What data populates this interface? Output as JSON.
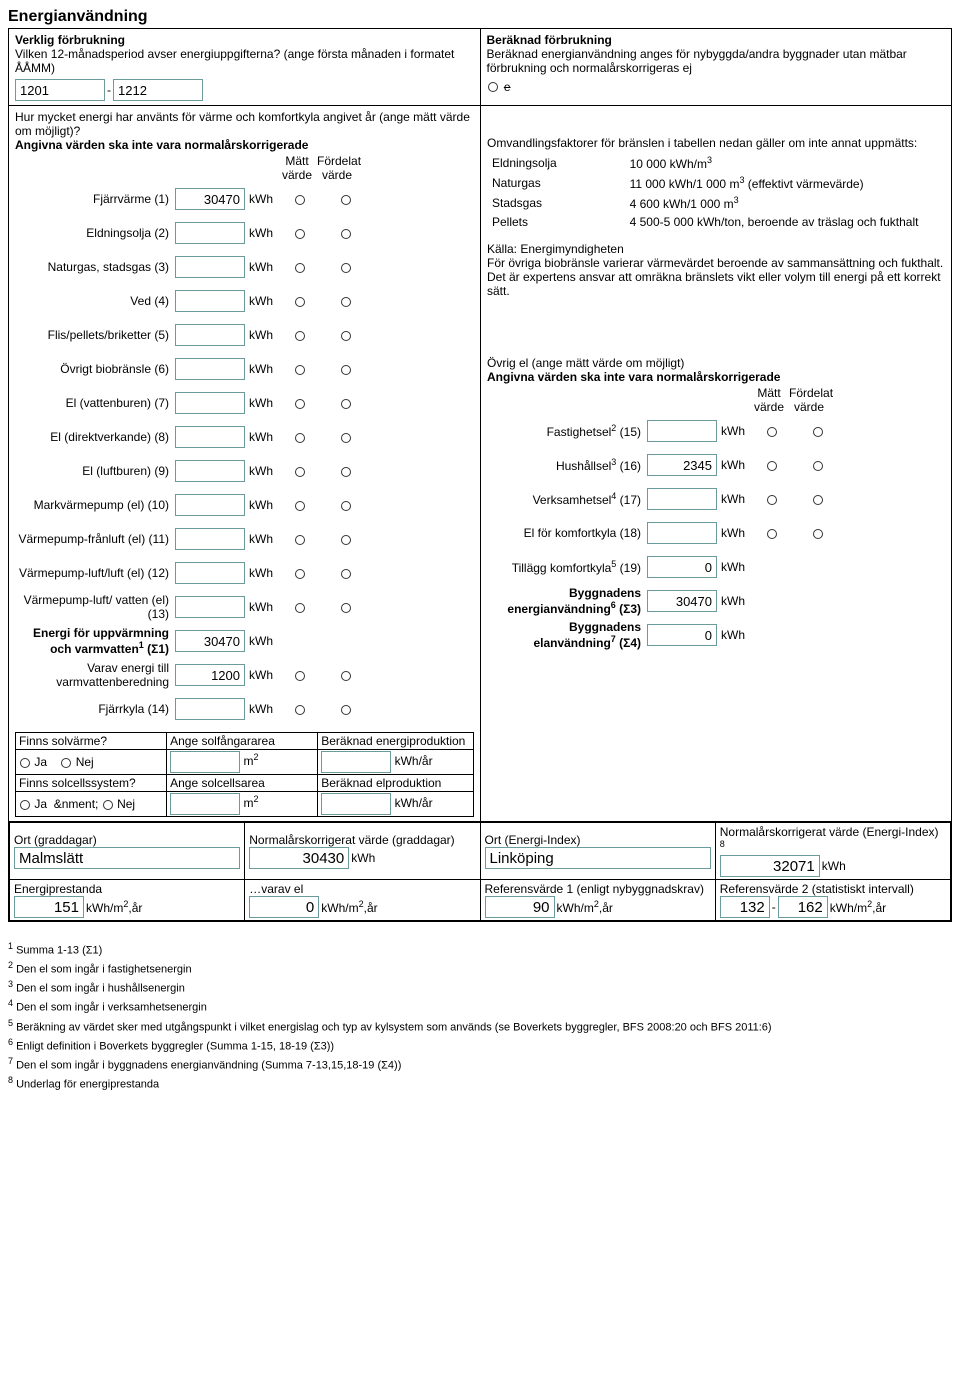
{
  "title": "Energianvändning",
  "left": {
    "heading": "Verklig förbrukning",
    "period_q": "Vilken 12-månadsperiod avser energiuppgifterna? (ange första månaden i formatet ÅÅMM)",
    "period_from": "1201",
    "period_sep": "-",
    "period_to": "1212",
    "energy_q1": "Hur mycket energi har använts för värme och komfortkyla angivet år (ange mätt värde om möjligt)?",
    "energy_q2": "Angivna värden ska inte vara normalårskorrigerade",
    "col_m": "Mätt värde",
    "col_f": "Fördelat värde",
    "rows": [
      {
        "label": "Fjärrvärme (1)",
        "val": "30470",
        "unit": "kWh"
      },
      {
        "label": "Eldningsolja (2)",
        "val": "",
        "unit": "kWh"
      },
      {
        "label": "Naturgas, stadsgas (3)",
        "val": "",
        "unit": "kWh"
      },
      {
        "label": "Ved (4)",
        "val": "",
        "unit": "kWh"
      },
      {
        "label": "Flis/pellets/briketter (5)",
        "val": "",
        "unit": "kWh"
      },
      {
        "label": "Övrigt biobränsle (6)",
        "val": "",
        "unit": "kWh"
      },
      {
        "label": "El (vattenburen) (7)",
        "val": "",
        "unit": "kWh"
      },
      {
        "label": "El (direktverkande) (8)",
        "val": "",
        "unit": "kWh"
      },
      {
        "label": "El (luftburen) (9)",
        "val": "",
        "unit": "kWh"
      },
      {
        "label": "Markvärmepump (el) (10)",
        "val": "",
        "unit": "kWh"
      },
      {
        "label": "Värmepump-frånluft (el) (11)",
        "val": "",
        "unit": "kWh"
      },
      {
        "label": "Värmepump-luft/luft (el) (12)",
        "val": "",
        "unit": "kWh"
      },
      {
        "label": "Värmepump-luft/ vatten (el) (13)",
        "val": "",
        "unit": "kWh"
      }
    ],
    "sum1_label": "Energi för uppvärmning och varmvatten",
    "sum1_sup": "1",
    "sum1_suffix": " (Σ1)",
    "sum1_val": "30470",
    "sum1_unit": "kWh",
    "varav_label": "Varav energi till varmvattenberedning",
    "varav_val": "1200",
    "varav_unit": "kWh",
    "fjarr_label": "Fjärrkyla (14)",
    "fjarr_val": "",
    "fjarr_unit": "kWh",
    "solv_q": "Finns solvärme?",
    "solv_area_label": "Ange solfångararea",
    "solv_prod_label": "Beräknad energiproduktion",
    "solcell_q": "Finns solcellssystem?",
    "solcell_area_label": "Ange solcellsarea",
    "solcell_prod_label": "Beräknad elproduktion",
    "ja": "Ja",
    "nej": "Nej",
    "m2": "m",
    "m2_sup": "2",
    "kwhar": "kWh/år"
  },
  "right": {
    "heading": "Beräknad förbrukning",
    "desc": "Beräknad energianvändning anges för nybyggda/andra byggnader utan mätbar förbrukning och normalårskorrigeras ej",
    "checkbox": "e",
    "conv_intro": "Omvandlingsfaktorer för bränslen i tabellen nedan gäller om inte annat uppmätts:",
    "conv": [
      {
        "fuel": "Eldningsolja",
        "factor": "10 000 kWh/m",
        "sup": "3",
        "suffix": ""
      },
      {
        "fuel": "Naturgas",
        "factor": "11 000 kWh/1 000 m",
        "sup": "3",
        "suffix": " (effektivt värmevärde)"
      },
      {
        "fuel": "Stadsgas",
        "factor": "4 600 kWh/1 000 m",
        "sup": "3",
        "suffix": ""
      },
      {
        "fuel": "Pellets",
        "factor": "4 500-5 000 kWh/ton, beroende av träslag och fukthalt",
        "sup": "",
        "suffix": ""
      }
    ],
    "source": "Källa: Energimyndigheten",
    "note": "För övriga biobränsle varierar värmevärdet beroende av sammansättning och fukthalt. Det är expertens ansvar att omräkna bränslets vikt eller volym till energi på ett korrekt sätt.",
    "ovrig_head": "Övrig el (ange mätt värde om möjligt)",
    "ovrig_head2": "Angivna värden ska inte vara normalårskorrigerade",
    "col_m": "Mätt värde",
    "col_f": "Fördelat värde",
    "rows": [
      {
        "label": "Fastighetsel",
        "sup": "2",
        "suffix": " (15)",
        "val": "",
        "unit": "kWh"
      },
      {
        "label": "Hushållsel",
        "sup": "3",
        "suffix": " (16)",
        "val": "2345",
        "unit": "kWh"
      },
      {
        "label": "Verksamhetsel",
        "sup": "4",
        "suffix": " (17)",
        "val": "",
        "unit": "kWh"
      },
      {
        "label": "El för komfortkyla (18)",
        "sup": "",
        "suffix": "",
        "val": "",
        "unit": "kWh"
      }
    ],
    "tillagg_label": "Tillägg komfortkyla",
    "tillagg_sup": "5",
    "tillagg_suffix": " (19)",
    "tillagg_val": "0",
    "tillagg_unit": "kWh",
    "sum3_label": "Byggnadens energianvändning",
    "sum3_sup": "6",
    "sum3_suffix": " (Σ3)",
    "sum3_val": "30470",
    "sum3_unit": "kWh",
    "sum4_label": "Byggnadens elanvändning",
    "sum4_sup": "7",
    "sum4_suffix": " (Σ4)",
    "sum4_val": "0",
    "sum4_unit": "kWh"
  },
  "bottom": {
    "ort_gd_label": "Ort (graddagar)",
    "ort_gd_val": "Malmslätt",
    "norm_gd_label": "Normalårskorrigerat värde (graddagar)",
    "norm_gd_val": "30430",
    "norm_gd_unit": "kWh",
    "ort_ei_label": "Ort (Energi-Index)",
    "ort_ei_val": "Linköping",
    "norm_ei_label": "Normalårskorrigerat värde (Energi-Index) ",
    "norm_ei_sup": "8",
    "norm_ei_val": "32071",
    "norm_ei_unit": "kWh",
    "ep_label": "Energiprestanda",
    "ep_val": "151",
    "ep_unit": "kWh/m",
    "ep_unit_sup": "2",
    "ep_unit_suffix": ",år",
    "varav_label": "…varav el",
    "varav_val": "0",
    "ref1_label": "Referensvärde 1 (enligt nybyggnadskrav)",
    "ref1_val": "90",
    "ref2_label": "Referensvärde 2 (statistiskt intervall)",
    "ref2_val1": "132",
    "ref2_sep": "-",
    "ref2_val2": "162"
  },
  "footnotes": [
    {
      "n": "1",
      "t": "Summa 1-13 (Σ1)"
    },
    {
      "n": "2",
      "t": "Den el som ingår i fastighetsenergin"
    },
    {
      "n": "3",
      "t": "Den el som ingår i hushållsenergin"
    },
    {
      "n": "4",
      "t": "Den el som ingår i verksamhetsenergin"
    },
    {
      "n": "5",
      "t": "Beräkning av värdet sker med utgångspunkt i vilket energislag och typ av kylsystem som används (se Boverkets byggregler, BFS 2008:20 och BFS 2011:6)"
    },
    {
      "n": "6",
      "t": "Enligt definition i Boverkets byggregler (Summa 1-15, 18-19 (Σ3))"
    },
    {
      "n": "7",
      "t": "Den el som ingår i byggnadens energianvändning (Summa 7-13,15,18-19 (Σ4))"
    },
    {
      "n": "8",
      "t": "Underlag för energiprestanda"
    }
  ],
  "colors": {
    "input_border": "#6b9b9b",
    "text": "#000000",
    "bg": "#ffffff",
    "table_border": "#000000"
  }
}
